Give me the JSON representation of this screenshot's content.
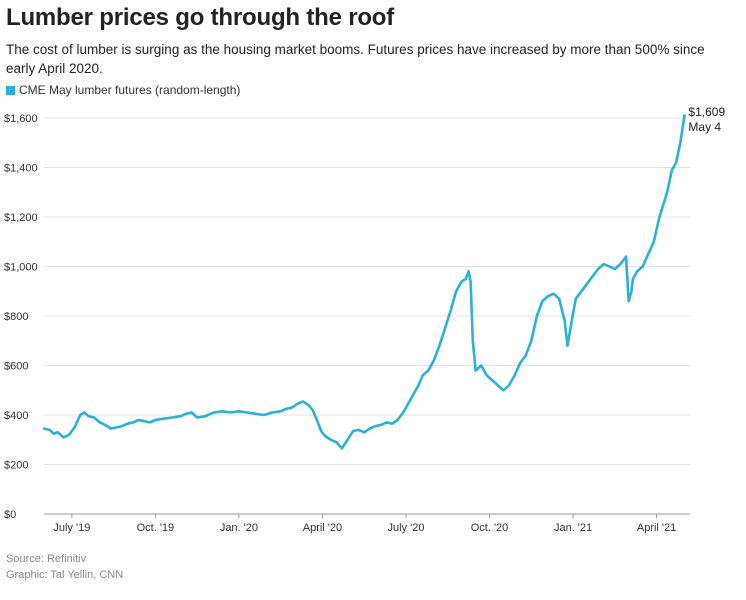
{
  "header": {
    "title": "Lumber prices go through the roof",
    "subtitle": "The cost of lumber is surging as the housing market booms. Futures prices have increased by more than 500% since early April 2020."
  },
  "legend": {
    "label": "CME May lumber futures (random-length)"
  },
  "footer": {
    "source": "Source: Refinitiv",
    "credit": "Graphic: Tal Yellin, CNN"
  },
  "colors": {
    "line": "#29b2d6",
    "grid": "#e3e3e3",
    "axis": "#999999"
  },
  "chart_data": {
    "type": "line",
    "title": "Lumber prices go through the roof",
    "xlabel": "",
    "ylabel": "",
    "ylim": [
      0,
      1650
    ],
    "y_ticks": [
      {
        "value": 0,
        "label": "$0"
      },
      {
        "value": 200,
        "label": "$200"
      },
      {
        "value": 400,
        "label": "$400"
      },
      {
        "value": 600,
        "label": "$600"
      },
      {
        "value": 800,
        "label": "$800"
      },
      {
        "value": 1000,
        "label": "$1,000"
      },
      {
        "value": 1200,
        "label": "$1,200"
      },
      {
        "value": 1400,
        "label": "$1,400"
      },
      {
        "value": 1600,
        "label": "$1,600"
      }
    ],
    "x_unit": "months since June 1, 2019",
    "xlim": [
      0,
      23.2
    ],
    "x_ticks": [
      {
        "value": 1,
        "label": "July '19"
      },
      {
        "value": 4,
        "label": "Oct. '19"
      },
      {
        "value": 7,
        "label": "Jan. '20"
      },
      {
        "value": 10,
        "label": "April '20"
      },
      {
        "value": 13,
        "label": "July '20"
      },
      {
        "value": 16,
        "label": "Oct. '20"
      },
      {
        "value": 19,
        "label": "Jan. '21"
      },
      {
        "value": 22,
        "label": "April '21"
      }
    ],
    "series": [
      {
        "name": "CME May lumber futures (random-length)",
        "x": [
          0.0,
          0.2,
          0.35,
          0.5,
          0.7,
          0.9,
          1.1,
          1.3,
          1.45,
          1.6,
          1.8,
          2.0,
          2.2,
          2.4,
          2.6,
          2.8,
          3.0,
          3.2,
          3.4,
          3.6,
          3.8,
          4.0,
          4.3,
          4.6,
          4.9,
          5.1,
          5.3,
          5.5,
          5.8,
          6.1,
          6.4,
          6.7,
          7.0,
          7.3,
          7.6,
          7.9,
          8.2,
          8.5,
          8.7,
          8.9,
          9.1,
          9.3,
          9.5,
          9.65,
          9.8,
          9.95,
          10.1,
          10.3,
          10.5,
          10.7,
          10.9,
          11.1,
          11.3,
          11.5,
          11.7,
          11.9,
          12.1,
          12.3,
          12.5,
          12.7,
          12.9,
          13.1,
          13.3,
          13.45,
          13.6,
          13.8,
          14.0,
          14.2,
          14.4,
          14.6,
          14.8,
          15.0,
          15.15,
          15.25,
          15.32,
          15.4,
          15.5,
          15.7,
          15.9,
          16.1,
          16.3,
          16.5,
          16.7,
          16.9,
          17.1,
          17.3,
          17.5,
          17.7,
          17.9,
          18.1,
          18.3,
          18.5,
          18.7,
          18.8,
          18.95,
          19.1,
          19.3,
          19.5,
          19.7,
          19.9,
          20.1,
          20.3,
          20.5,
          20.7,
          20.9,
          21.0,
          21.1,
          21.15,
          21.3,
          21.5,
          21.7,
          21.9,
          22.1,
          22.3,
          22.4,
          22.55,
          22.7,
          22.85,
          23.0
        ],
        "values": [
          345,
          340,
          325,
          330,
          310,
          320,
          350,
          400,
          410,
          395,
          390,
          370,
          360,
          345,
          350,
          355,
          365,
          370,
          380,
          375,
          370,
          380,
          385,
          390,
          395,
          405,
          410,
          390,
          395,
          410,
          415,
          410,
          415,
          410,
          405,
          400,
          410,
          415,
          425,
          430,
          445,
          455,
          440,
          420,
          380,
          335,
          315,
          300,
          290,
          265,
          300,
          335,
          340,
          330,
          345,
          355,
          360,
          370,
          365,
          380,
          410,
          450,
          490,
          520,
          560,
          580,
          620,
          680,
          750,
          820,
          900,
          940,
          950,
          980,
          940,
          700,
          580,
          600,
          560,
          540,
          520,
          500,
          520,
          560,
          610,
          640,
          700,
          800,
          860,
          880,
          890,
          870,
          780,
          680,
          780,
          870,
          900,
          930,
          960,
          990,
          1010,
          1000,
          990,
          1010,
          1040,
          860,
          900,
          950,
          980,
          1000,
          1050,
          1100,
          1200,
          1270,
          1310,
          1390,
          1420,
          1500,
          1609
        ]
      }
    ],
    "annotation": {
      "value_label": "$1,609",
      "date_label": "May 4"
    }
  }
}
